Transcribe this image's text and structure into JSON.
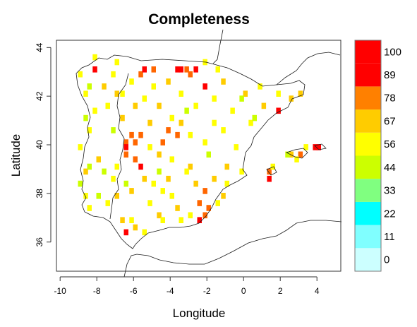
{
  "chart_data": {
    "type": "heatmap",
    "title": "Completeness",
    "xlabel": "Longitude",
    "ylabel": "Latitude",
    "xlim": [
      -10.2,
      5.3
    ],
    "ylim": [
      34.8,
      44.3
    ],
    "x_ticks": [
      "-10",
      "-8",
      "-6",
      "-4",
      "-2",
      "0",
      "2",
      "4"
    ],
    "y_ticks": [
      "36",
      "38",
      "40",
      "42",
      "44"
    ],
    "cell_size_deg": 0.25,
    "legend": {
      "position": "right",
      "labels": [
        "0",
        "11",
        "22",
        "33",
        "44",
        "56",
        "67",
        "78",
        "89",
        "100"
      ],
      "colors": [
        "#ccffff",
        "#80ffff",
        "#00ffff",
        "#80ff80",
        "#ccff00",
        "#ffff00",
        "#ffcc00",
        "#ff8000",
        "#ff0000",
        "#ff0000"
      ]
    },
    "value_colors": {
      "56": "#ccff00",
      "67": "#ffff00",
      "78": "#ffcc00",
      "89": "#ff6600",
      "100": "#ff0000"
    },
    "cells": [
      {
        "lon": -6.1,
        "lat": 40.4,
        "v": 89
      },
      {
        "lon": -5.9,
        "lat": 40.1,
        "v": 89
      },
      {
        "lon": -6.4,
        "lat": 40.1,
        "v": 89
      },
      {
        "lon": -5.6,
        "lat": 40.4,
        "v": 89
      },
      {
        "lon": -6.4,
        "lat": 39.6,
        "v": 89
      },
      {
        "lon": -5.9,
        "lat": 39.4,
        "v": 89
      },
      {
        "lon": -4.1,
        "lat": 40.6,
        "v": 89
      },
      {
        "lon": -3.6,
        "lat": 40.4,
        "v": 89
      },
      {
        "lon": -4.4,
        "lat": 40.1,
        "v": 89
      },
      {
        "lon": -2.1,
        "lat": 38.1,
        "v": 89
      },
      {
        "lon": -2.4,
        "lat": 37.6,
        "v": 89
      },
      {
        "lon": -1.9,
        "lat": 37.4,
        "v": 89
      },
      {
        "lon": -2.1,
        "lat": 37.1,
        "v": 89
      },
      {
        "lon": -5.6,
        "lat": 42.9,
        "v": 89
      },
      {
        "lon": -4.9,
        "lat": 43.1,
        "v": 89
      },
      {
        "lon": -3.1,
        "lat": 43.1,
        "v": 89
      },
      {
        "lon": -2.9,
        "lat": 42.9,
        "v": 89
      },
      {
        "lon": 3.1,
        "lat": 39.6,
        "v": 89
      },
      {
        "lon": 1.4,
        "lat": 38.9,
        "v": 89
      },
      {
        "lon": -3.4,
        "lat": 43.1,
        "v": 100
      },
      {
        "lon": -3.6,
        "lat": 43.1,
        "v": 100
      },
      {
        "lon": -2.6,
        "lat": 43.1,
        "v": 100
      },
      {
        "lon": -5.4,
        "lat": 43.1,
        "v": 100
      },
      {
        "lon": -2.1,
        "lat": 42.4,
        "v": 100
      },
      {
        "lon": -6.4,
        "lat": 39.9,
        "v": 100
      },
      {
        "lon": -5.6,
        "lat": 39.1,
        "v": 100
      },
      {
        "lon": 3.9,
        "lat": 39.9,
        "v": 100
      },
      {
        "lon": 4.1,
        "lat": 39.9,
        "v": 100
      },
      {
        "lon": 1.4,
        "lat": 38.6,
        "v": 100
      },
      {
        "lon": -6.4,
        "lat": 36.4,
        "v": 100
      },
      {
        "lon": 1.9,
        "lat": 41.4,
        "v": 100
      },
      {
        "lon": -2.4,
        "lat": 36.9,
        "v": 100
      },
      {
        "lon": -8.1,
        "lat": 43.1,
        "v": 100
      },
      {
        "lon": -5.1,
        "lat": 40.9,
        "v": 78
      },
      {
        "lon": -4.6,
        "lat": 39.6,
        "v": 78
      },
      {
        "lon": -5.4,
        "lat": 38.6,
        "v": 78
      },
      {
        "lon": -2.9,
        "lat": 39.1,
        "v": 78
      },
      {
        "lon": -2.6,
        "lat": 38.4,
        "v": 78
      },
      {
        "lon": -1.6,
        "lat": 38.6,
        "v": 78
      },
      {
        "lon": -3.6,
        "lat": 37.4,
        "v": 78
      },
      {
        "lon": -4.6,
        "lat": 37.1,
        "v": 78
      },
      {
        "lon": -6.9,
        "lat": 37.9,
        "v": 78
      },
      {
        "lon": -6.1,
        "lat": 38.1,
        "v": 78
      },
      {
        "lon": -6.6,
        "lat": 36.9,
        "v": 78
      },
      {
        "lon": -5.9,
        "lat": 36.6,
        "v": 78
      },
      {
        "lon": -7.6,
        "lat": 42.4,
        "v": 78
      },
      {
        "lon": -6.9,
        "lat": 42.1,
        "v": 78
      },
      {
        "lon": -4.1,
        "lat": 42.6,
        "v": 78
      },
      {
        "lon": -1.1,
        "lat": 42.6,
        "v": 78
      },
      {
        "lon": 0.1,
        "lat": 42.1,
        "v": 78
      },
      {
        "lon": 1.1,
        "lat": 41.6,
        "v": 78
      },
      {
        "lon": 2.6,
        "lat": 41.9,
        "v": 78
      },
      {
        "lon": 3.1,
        "lat": 42.1,
        "v": 78
      },
      {
        "lon": 2.6,
        "lat": 39.6,
        "v": 78
      },
      {
        "lon": -8.6,
        "lat": 38.9,
        "v": 78
      },
      {
        "lon": -7.9,
        "lat": 39.4,
        "v": 78
      },
      {
        "lon": -0.9,
        "lat": 39.1,
        "v": 78
      },
      {
        "lon": -1.1,
        "lat": 37.9,
        "v": 78
      },
      {
        "lon": -4.1,
        "lat": 38.6,
        "v": 78
      },
      {
        "lon": -3.4,
        "lat": 40.9,
        "v": 78
      },
      {
        "lon": -5.9,
        "lat": 41.6,
        "v": 78
      },
      {
        "lon": -6.6,
        "lat": 41.1,
        "v": 78
      },
      {
        "lon": -4.6,
        "lat": 41.6,
        "v": 78
      },
      {
        "lon": -6.9,
        "lat": 39.1,
        "v": 67
      },
      {
        "lon": -7.1,
        "lat": 38.6,
        "v": 67
      },
      {
        "lon": -5.1,
        "lat": 39.9,
        "v": 67
      },
      {
        "lon": -4.9,
        "lat": 38.4,
        "v": 67
      },
      {
        "lon": -3.9,
        "lat": 39.4,
        "v": 67
      },
      {
        "lon": -3.1,
        "lat": 38.9,
        "v": 67
      },
      {
        "lon": -3.9,
        "lat": 37.9,
        "v": 67
      },
      {
        "lon": -4.4,
        "lat": 36.9,
        "v": 67
      },
      {
        "lon": -5.1,
        "lat": 37.6,
        "v": 67
      },
      {
        "lon": -7.4,
        "lat": 37.6,
        "v": 67
      },
      {
        "lon": -8.4,
        "lat": 37.4,
        "v": 67
      },
      {
        "lon": -8.6,
        "lat": 37.9,
        "v": 67
      },
      {
        "lon": -8.9,
        "lat": 39.9,
        "v": 67
      },
      {
        "lon": -8.4,
        "lat": 40.6,
        "v": 67
      },
      {
        "lon": -8.1,
        "lat": 41.4,
        "v": 67
      },
      {
        "lon": -7.4,
        "lat": 41.6,
        "v": 67
      },
      {
        "lon": -8.6,
        "lat": 42.1,
        "v": 67
      },
      {
        "lon": -7.1,
        "lat": 42.9,
        "v": 67
      },
      {
        "lon": -6.1,
        "lat": 42.6,
        "v": 67
      },
      {
        "lon": -4.9,
        "lat": 42.4,
        "v": 67
      },
      {
        "lon": -3.4,
        "lat": 42.1,
        "v": 67
      },
      {
        "lon": -2.6,
        "lat": 41.6,
        "v": 67
      },
      {
        "lon": -1.6,
        "lat": 41.9,
        "v": 67
      },
      {
        "lon": -0.6,
        "lat": 41.4,
        "v": 67
      },
      {
        "lon": 0.4,
        "lat": 40.9,
        "v": 67
      },
      {
        "lon": 0.9,
        "lat": 42.4,
        "v": 67
      },
      {
        "lon": 1.9,
        "lat": 42.1,
        "v": 67
      },
      {
        "lon": -1.1,
        "lat": 40.6,
        "v": 67
      },
      {
        "lon": -0.4,
        "lat": 39.9,
        "v": 67
      },
      {
        "lon": -0.1,
        "lat": 38.9,
        "v": 67
      },
      {
        "lon": -0.9,
        "lat": 38.4,
        "v": 67
      },
      {
        "lon": -1.4,
        "lat": 37.6,
        "v": 67
      },
      {
        "lon": -2.9,
        "lat": 37.1,
        "v": 67
      },
      {
        "lon": -3.4,
        "lat": 36.9,
        "v": 67
      },
      {
        "lon": -5.4,
        "lat": 36.4,
        "v": 67
      },
      {
        "lon": -6.1,
        "lat": 36.9,
        "v": 67
      },
      {
        "lon": -2.1,
        "lat": 40.1,
        "v": 67
      },
      {
        "lon": -1.6,
        "lat": 40.9,
        "v": 67
      },
      {
        "lon": -2.9,
        "lat": 40.4,
        "v": 67
      },
      {
        "lon": -3.9,
        "lat": 41.1,
        "v": 67
      },
      {
        "lon": -5.4,
        "lat": 41.9,
        "v": 67
      },
      {
        "lon": -6.6,
        "lat": 42.1,
        "v": 67
      },
      {
        "lon": 3.4,
        "lat": 39.9,
        "v": 67
      },
      {
        "lon": 2.9,
        "lat": 39.4,
        "v": 67
      },
      {
        "lon": 1.6,
        "lat": 39.1,
        "v": 67
      },
      {
        "lon": -8.9,
        "lat": 42.9,
        "v": 67
      },
      {
        "lon": -8.1,
        "lat": 43.6,
        "v": 67
      },
      {
        "lon": -6.9,
        "lat": 43.4,
        "v": 67
      },
      {
        "lon": -2.1,
        "lat": 43.4,
        "v": 67
      },
      {
        "lon": -1.4,
        "lat": 43.1,
        "v": 67
      },
      {
        "lon": -4.4,
        "lat": 38.1,
        "v": 67
      },
      {
        "lon": -8.4,
        "lat": 39.1,
        "v": 56
      },
      {
        "lon": -7.6,
        "lat": 38.9,
        "v": 56
      },
      {
        "lon": -8.9,
        "lat": 38.4,
        "v": 56
      },
      {
        "lon": -7.9,
        "lat": 37.9,
        "v": 56
      },
      {
        "lon": -8.6,
        "lat": 41.1,
        "v": 56
      },
      {
        "lon": -8.4,
        "lat": 42.4,
        "v": 56
      },
      {
        "lon": -3.1,
        "lat": 41.4,
        "v": 56
      },
      {
        "lon": -1.9,
        "lat": 39.6,
        "v": 56
      },
      {
        "lon": 2.4,
        "lat": 39.6,
        "v": 56
      },
      {
        "lon": 0.6,
        "lat": 41.1,
        "v": 56
      },
      {
        "lon": -0.1,
        "lat": 41.9,
        "v": 56
      },
      {
        "lon": -4.6,
        "lat": 38.9,
        "v": 56
      },
      {
        "lon": -6.4,
        "lat": 38.4,
        "v": 56
      },
      {
        "lon": -7.1,
        "lat": 40.6,
        "v": 56
      }
    ]
  }
}
